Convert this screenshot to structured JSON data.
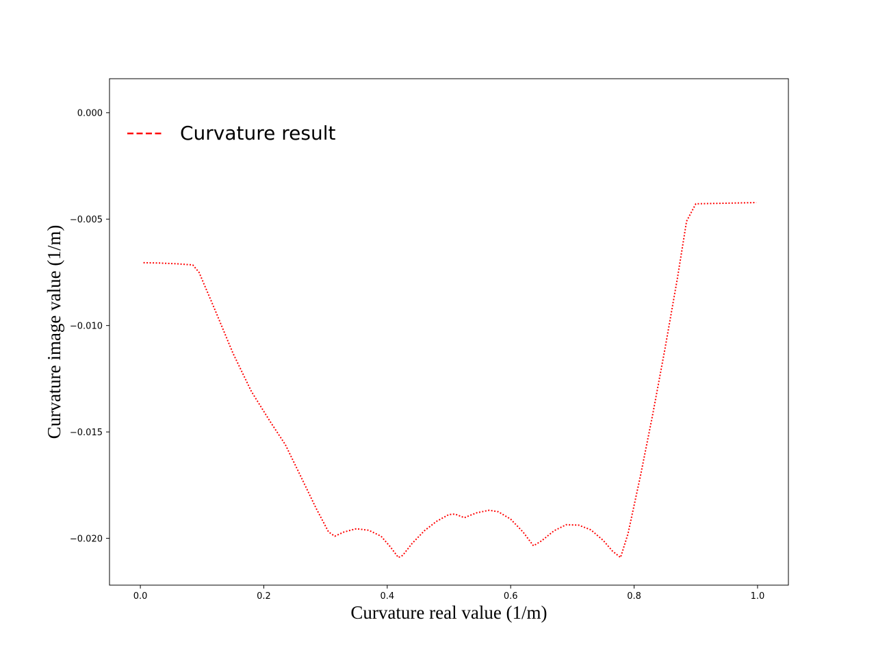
{
  "chart_data": {
    "type": "line",
    "xlabel": "Curvature real value (1/m)",
    "ylabel": "Curvature image value (1/m)",
    "xlim": [
      -0.05,
      1.05
    ],
    "ylim": [
      -0.0222,
      0.0016
    ],
    "xticks": [
      0.0,
      0.2,
      0.4,
      0.6,
      0.8,
      1.0
    ],
    "xtick_labels": [
      "0.0",
      "0.2",
      "0.4",
      "0.6",
      "0.8",
      "1.0"
    ],
    "yticks": [
      0.0,
      -0.005,
      -0.01,
      -0.015,
      -0.02
    ],
    "ytick_labels": [
      "0.000",
      "−0.005",
      "−0.010",
      "−0.015",
      "−0.020"
    ],
    "grid": false,
    "legend_position": "upper-left",
    "series": [
      {
        "name": "Curvature result",
        "color": "#ff0000",
        "style": "dotted",
        "points": [
          [
            0.005,
            -0.00705
          ],
          [
            0.03,
            -0.00706
          ],
          [
            0.06,
            -0.0071
          ],
          [
            0.085,
            -0.00715
          ],
          [
            0.095,
            -0.0075
          ],
          [
            0.12,
            -0.0092
          ],
          [
            0.15,
            -0.0113
          ],
          [
            0.18,
            -0.0131
          ],
          [
            0.21,
            -0.0145
          ],
          [
            0.235,
            -0.0156
          ],
          [
            0.26,
            -0.0171
          ],
          [
            0.285,
            -0.0186
          ],
          [
            0.305,
            -0.0197
          ],
          [
            0.315,
            -0.0199
          ],
          [
            0.33,
            -0.0197
          ],
          [
            0.35,
            -0.01955
          ],
          [
            0.37,
            -0.01962
          ],
          [
            0.39,
            -0.0199
          ],
          [
            0.405,
            -0.0204
          ],
          [
            0.418,
            -0.0209
          ],
          [
            0.425,
            -0.0208
          ],
          [
            0.44,
            -0.02025
          ],
          [
            0.46,
            -0.01965
          ],
          [
            0.48,
            -0.0192
          ],
          [
            0.5,
            -0.01888
          ],
          [
            0.51,
            -0.01886
          ],
          [
            0.525,
            -0.01903
          ],
          [
            0.545,
            -0.0188
          ],
          [
            0.565,
            -0.01868
          ],
          [
            0.58,
            -0.01875
          ],
          [
            0.6,
            -0.0191
          ],
          [
            0.62,
            -0.0197
          ],
          [
            0.637,
            -0.02035
          ],
          [
            0.65,
            -0.02012
          ],
          [
            0.67,
            -0.01965
          ],
          [
            0.69,
            -0.01936
          ],
          [
            0.71,
            -0.01938
          ],
          [
            0.73,
            -0.0196
          ],
          [
            0.75,
            -0.0201
          ],
          [
            0.765,
            -0.0206
          ],
          [
            0.778,
            -0.0209
          ],
          [
            0.79,
            -0.0198
          ],
          [
            0.81,
            -0.0171
          ],
          [
            0.83,
            -0.0142
          ],
          [
            0.85,
            -0.0111
          ],
          [
            0.87,
            -0.0078
          ],
          [
            0.885,
            -0.0051
          ],
          [
            0.9,
            -0.00428
          ],
          [
            0.95,
            -0.00425
          ],
          [
            0.998,
            -0.00422
          ]
        ]
      }
    ]
  }
}
